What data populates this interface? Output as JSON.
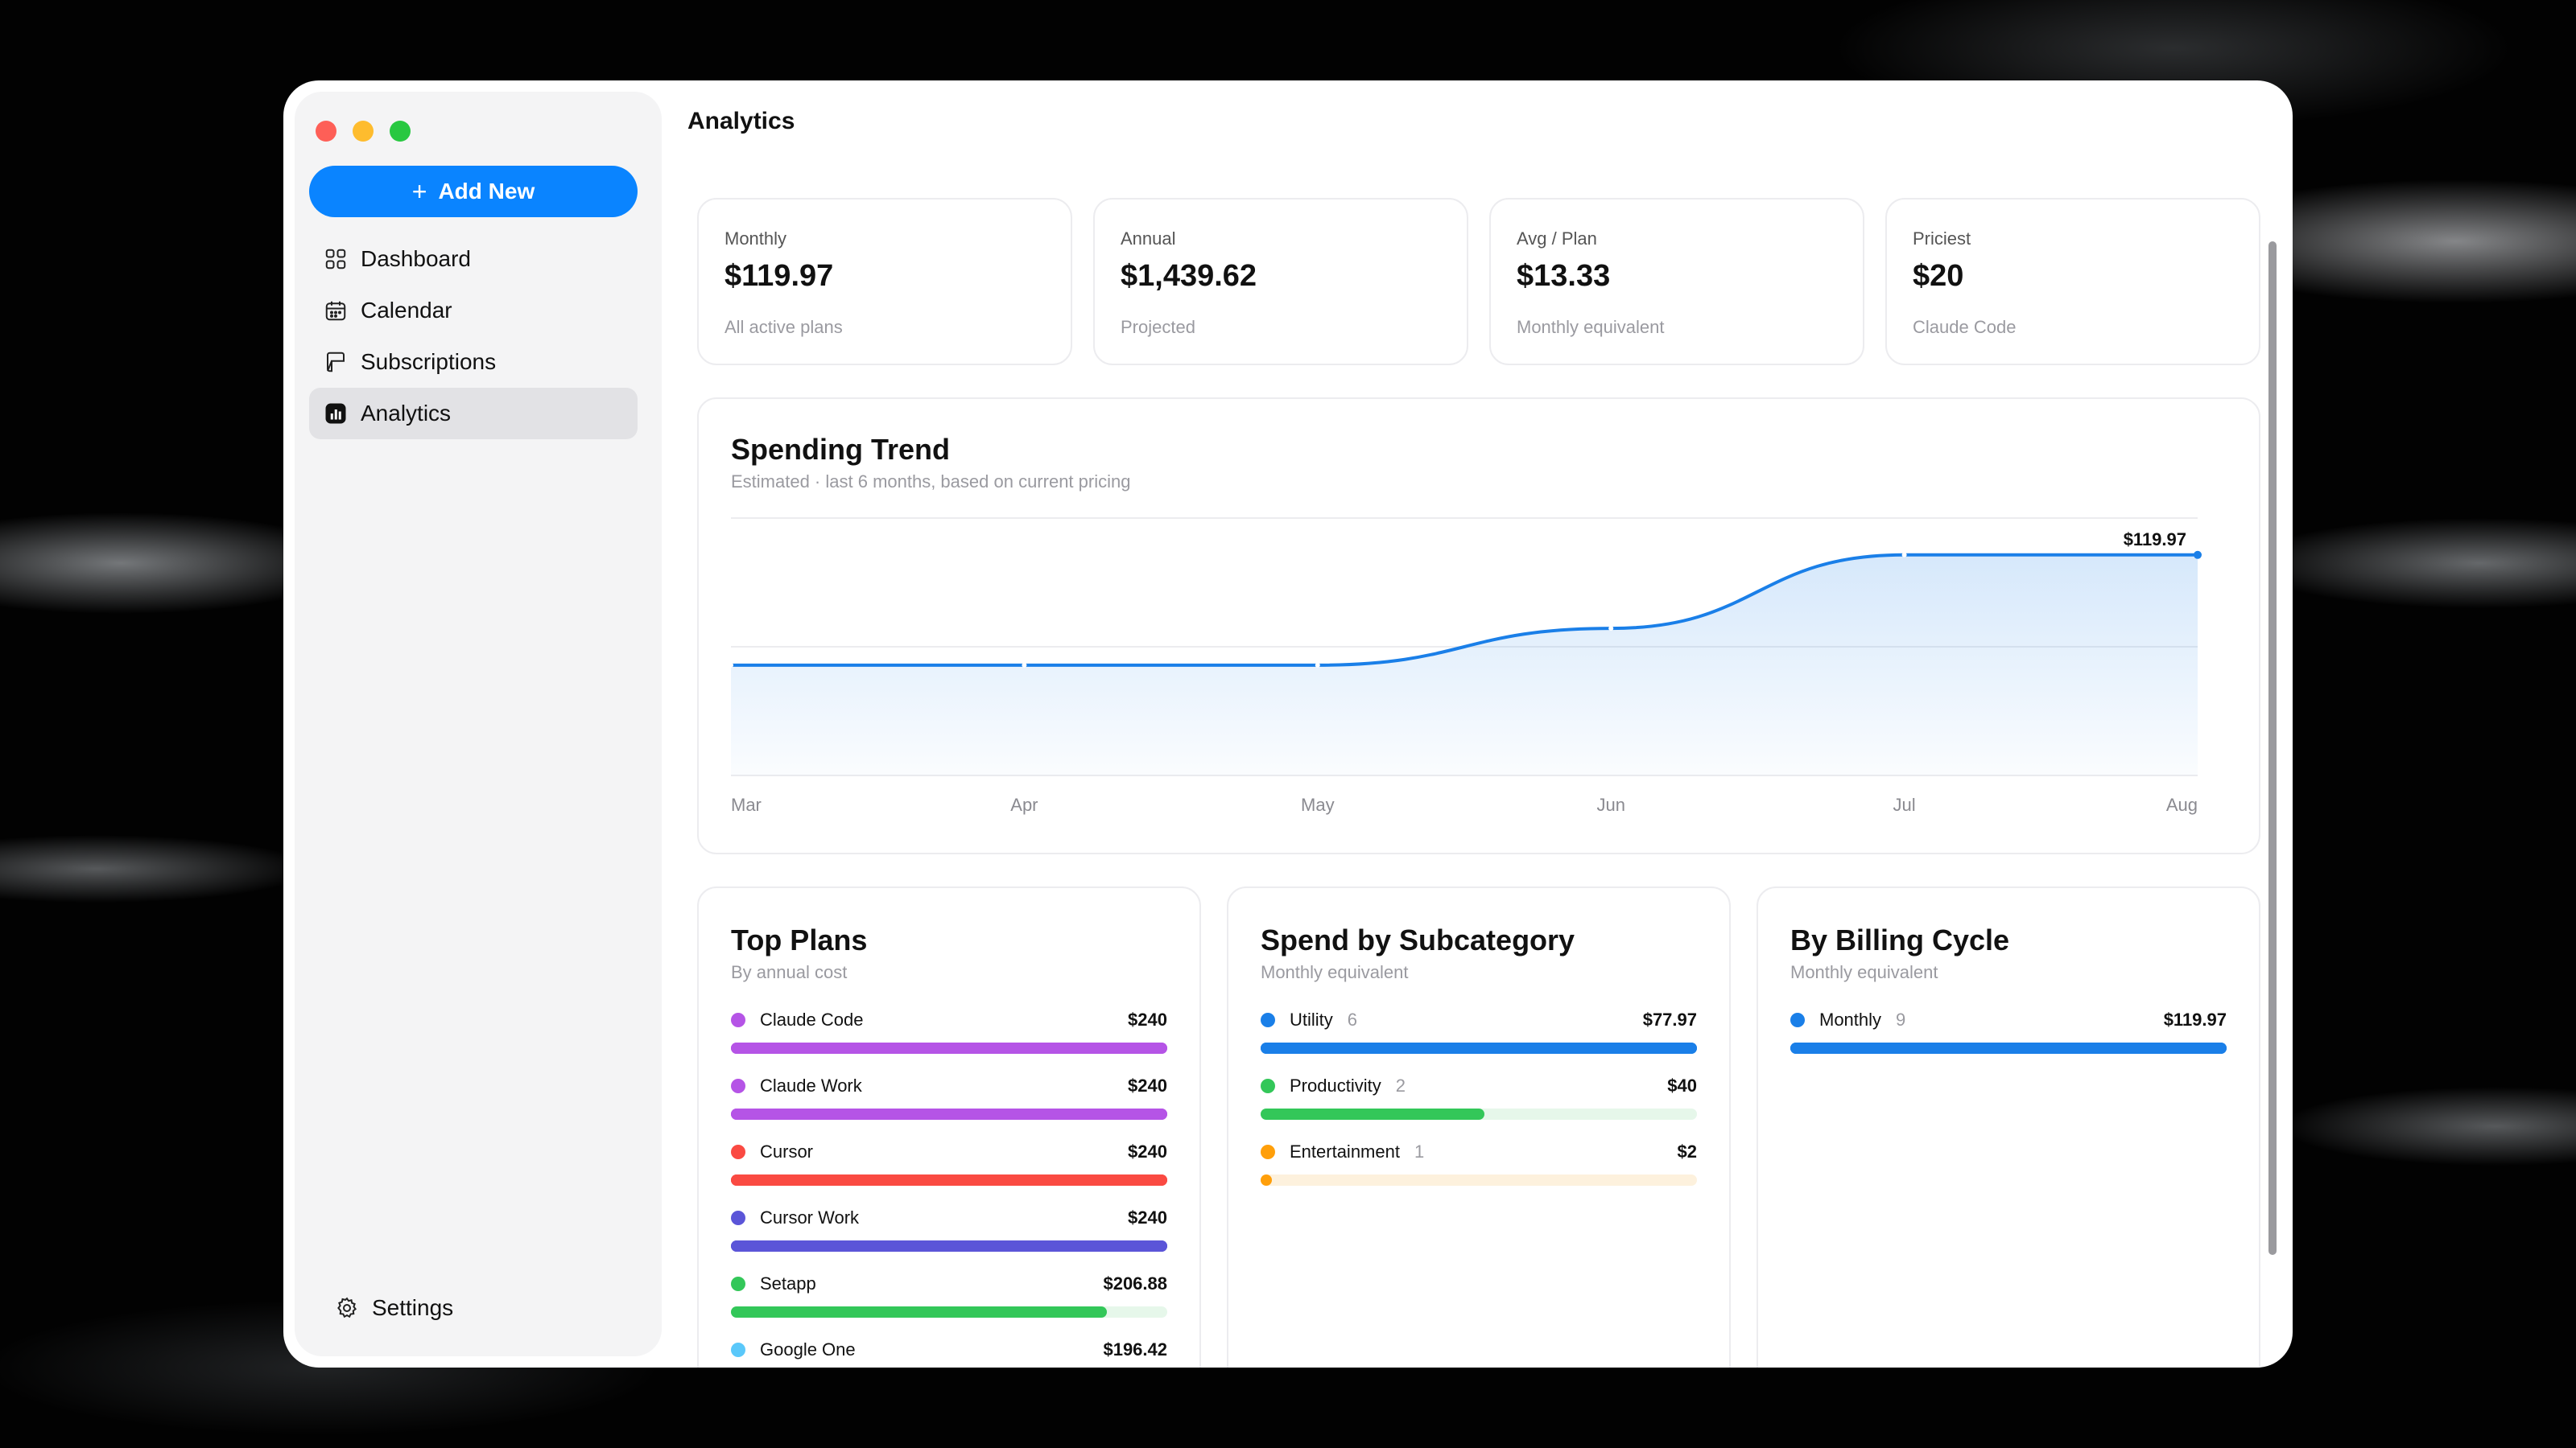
{
  "window": {
    "title": "Analytics"
  },
  "sidebar": {
    "add_button": "Add New",
    "items": [
      {
        "label": "Dashboard",
        "icon": "grid-icon",
        "active": false
      },
      {
        "label": "Calendar",
        "icon": "calendar-icon",
        "active": false
      },
      {
        "label": "Subscriptions",
        "icon": "subscriptions-icon",
        "active": false
      },
      {
        "label": "Analytics",
        "icon": "analytics-icon",
        "active": true
      }
    ],
    "settings": "Settings"
  },
  "stats": [
    {
      "label": "Monthly",
      "value": "$119.97",
      "sub": "All active plans"
    },
    {
      "label": "Annual",
      "value": "$1,439.62",
      "sub": "Projected"
    },
    {
      "label": "Avg / Plan",
      "value": "$13.33",
      "sub": "Monthly equivalent"
    },
    {
      "label": "Priciest",
      "value": "$20",
      "sub": "Claude Code"
    }
  ],
  "trend": {
    "title": "Spending Trend",
    "subtitle": "Estimated · last 6 months, based on current pricing",
    "last_label": "$119.97"
  },
  "chart_data": {
    "type": "area",
    "x": [
      "Mar",
      "Apr",
      "May",
      "Jun",
      "Jul",
      "Aug"
    ],
    "values": [
      60,
      60,
      60,
      80,
      120,
      119.97
    ],
    "ylim": [
      0,
      140
    ],
    "grid": true,
    "color": "#1a7fe8"
  },
  "top_plans": {
    "title": "Top Plans",
    "subtitle": "By annual cost",
    "items": [
      {
        "name": "Claude Code",
        "value": "$240",
        "fraction": 1.0,
        "color": "#b554e6",
        "track": "#b554e6"
      },
      {
        "name": "Claude Work",
        "value": "$240",
        "fraction": 1.0,
        "color": "#b554e6",
        "track": "#b554e6"
      },
      {
        "name": "Cursor",
        "value": "$240",
        "fraction": 1.0,
        "color": "#fa4a42",
        "track": "#fa4a42"
      },
      {
        "name": "Cursor Work",
        "value": "$240",
        "fraction": 1.0,
        "color": "#5b55d8",
        "track": "#5b55d8"
      },
      {
        "name": "Setapp",
        "value": "$206.88",
        "fraction": 0.862,
        "color": "#33c759",
        "track": "#e6f7ea"
      },
      {
        "name": "Google One",
        "value": "$196.42",
        "fraction": 0.818,
        "color": "#5ac8fa",
        "track": "#e6f5fd"
      }
    ]
  },
  "subcategory": {
    "title": "Spend by Subcategory",
    "subtitle": "Monthly equivalent",
    "items": [
      {
        "name": "Utility",
        "count": "6",
        "value": "$77.97",
        "fraction": 1.0,
        "color": "#1a7fe8",
        "track": "#1a7fe8"
      },
      {
        "name": "Productivity",
        "count": "2",
        "value": "$40",
        "fraction": 0.513,
        "color": "#33c759",
        "track": "#e6f7ea"
      },
      {
        "name": "Entertainment",
        "count": "1",
        "value": "$2",
        "fraction": 0.026,
        "color": "#ff9f0a",
        "track": "#fdf1dd"
      }
    ]
  },
  "billing": {
    "title": "By Billing Cycle",
    "subtitle": "Monthly equivalent",
    "items": [
      {
        "name": "Monthly",
        "count": "9",
        "value": "$119.97",
        "fraction": 1.0,
        "color": "#1a7fe8",
        "track": "#1a7fe8"
      }
    ]
  }
}
